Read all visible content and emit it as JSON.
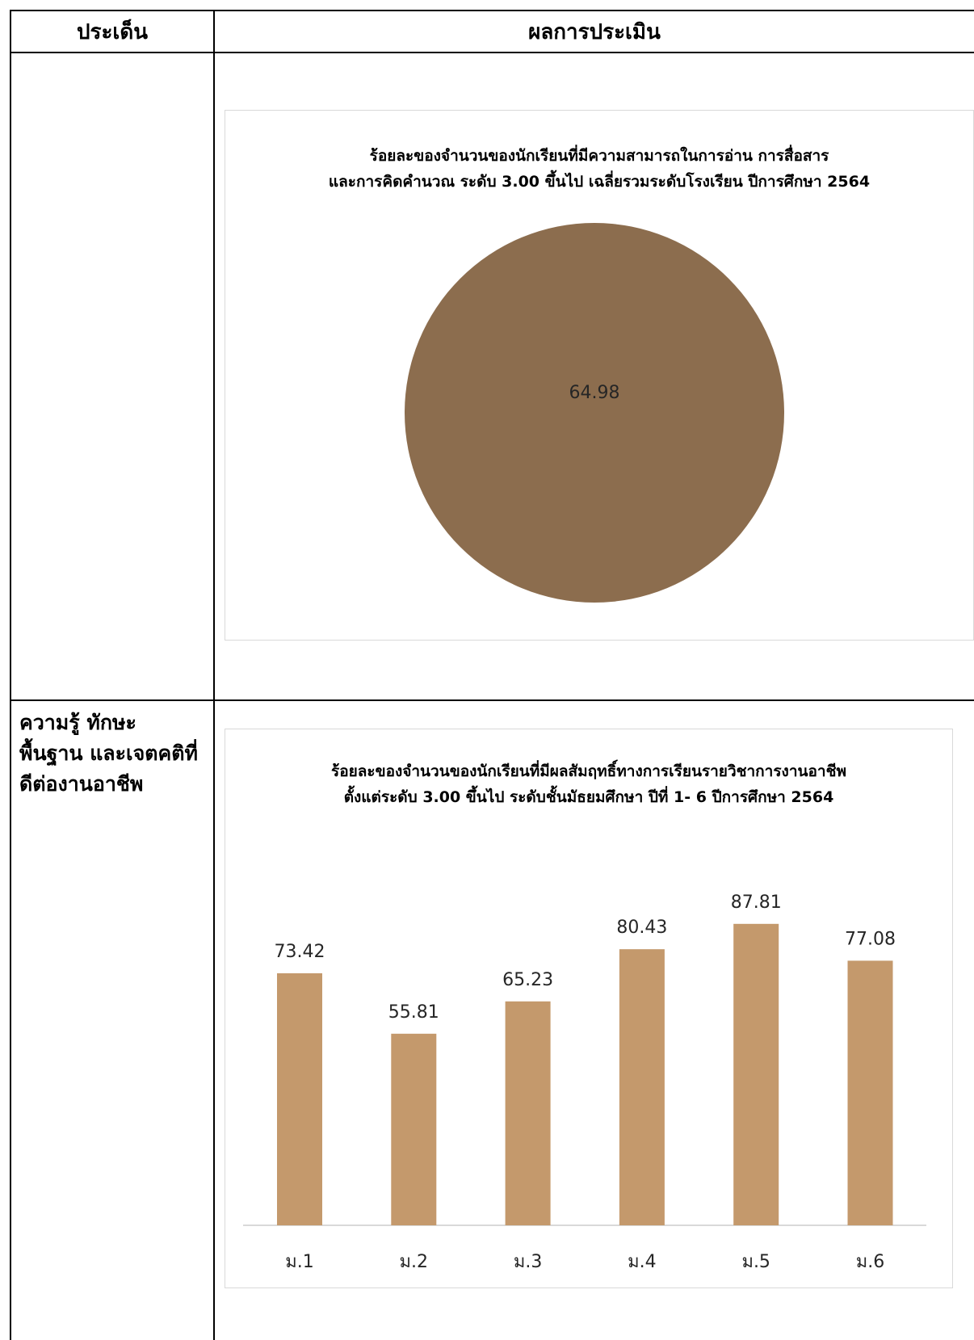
{
  "table": {
    "headers": [
      "ประเด็น",
      "ผลการประเมิน"
    ],
    "rows": [
      {
        "issue_lines": []
      },
      {
        "issue_lines": [
          "ความรู้  ทักษะ",
          "พื้นฐาน และเจตคติที่",
          "ดีต่องานอาชีพ"
        ]
      }
    ]
  },
  "chart_data": [
    {
      "type": "pie",
      "title_lines": [
        "ร้อยละของจำนวนของนักเรียนที่มีความสามารถในการอ่าน การสื่อสาร",
        "และการคิดคำนวณ ระดับ 3.00 ขึ้นไป เฉลี่ยรวมระดับโรงเรียน  ปีการศึกษา 2564"
      ],
      "values": [
        64.98
      ],
      "data_labels": [
        "64.98"
      ],
      "color": "#8c6d4e"
    },
    {
      "type": "bar",
      "title_lines": [
        "ร้อยละของจำนวนของนักเรียนที่มีผลสัมฤทธิ์ทางการเรียนรายวิชาการงานอาชีพ",
        "ตั้งแต่ระดับ 3.00 ขึ้นไป ระดับชั้นมัธยมศึกษา ปีที่ 1- 6  ปีการศึกษา 2564"
      ],
      "categories": [
        "ม.1",
        "ม.2",
        "ม.3",
        "ม.4",
        "ม.5",
        "ม.6"
      ],
      "values": [
        73.42,
        55.81,
        65.23,
        80.43,
        87.81,
        77.08
      ],
      "data_labels": [
        "73.42",
        "55.81",
        "65.23",
        "80.43",
        "87.81",
        "77.08"
      ],
      "ylim": [
        0,
        100
      ],
      "grid": false,
      "color": "#c4996c"
    }
  ]
}
